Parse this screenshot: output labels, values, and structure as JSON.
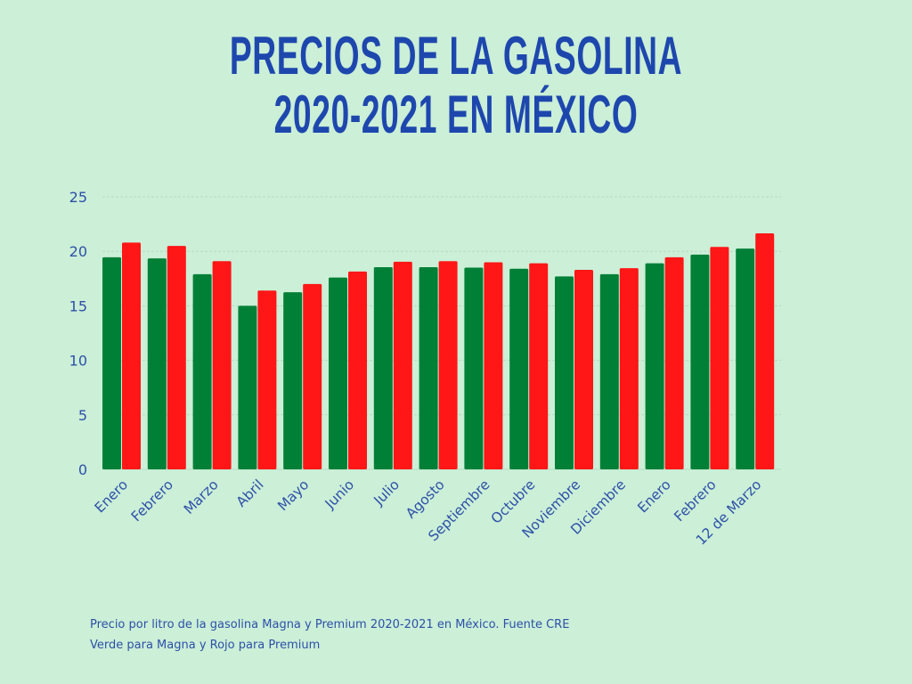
{
  "title_lines": [
    "PRECIOS DE LA GASOLINA",
    "2020-2021 EN MÉXICO"
  ],
  "caption_lines": [
    "Precio por litro de la gasolina Magna y Premium 2020-2021 en México. Fuente CRE",
    "Verde para Magna y Rojo para Premium"
  ],
  "colors": {
    "background": "#cbefd7",
    "title": "#1e47ae",
    "text": "#2e50a8",
    "magna": "#008037",
    "premium": "#ff1616",
    "grid": "#b5dcc3"
  },
  "chart_data": {
    "type": "bar",
    "title": "Precios de la gasolina 2020-2021 en México",
    "xlabel": "",
    "ylabel": "",
    "ylim": [
      0,
      25
    ],
    "yticks": [
      0,
      5,
      10,
      15,
      20,
      25
    ],
    "grid": true,
    "legend": "none",
    "categories": [
      "Enero",
      "Febrero",
      "Marzo",
      "Abril",
      "Mayo",
      "Junio",
      "Julio",
      "Agosto",
      "Septiembre",
      "Octubre",
      "Noviembre",
      "Diciembre",
      "Enero",
      "Febrero",
      "12 de Marzo"
    ],
    "series": [
      {
        "name": "Magna",
        "color": "#008037",
        "values": [
          19.45,
          19.35,
          17.9,
          15.0,
          16.25,
          17.6,
          18.55,
          18.55,
          18.5,
          18.4,
          17.7,
          17.9,
          18.9,
          19.7,
          20.25
        ]
      },
      {
        "name": "Premium",
        "color": "#ff1616",
        "values": [
          20.8,
          20.5,
          19.1,
          16.4,
          17.0,
          18.15,
          19.05,
          19.1,
          19.0,
          18.9,
          18.3,
          18.45,
          19.45,
          20.4,
          21.65
        ]
      }
    ]
  }
}
